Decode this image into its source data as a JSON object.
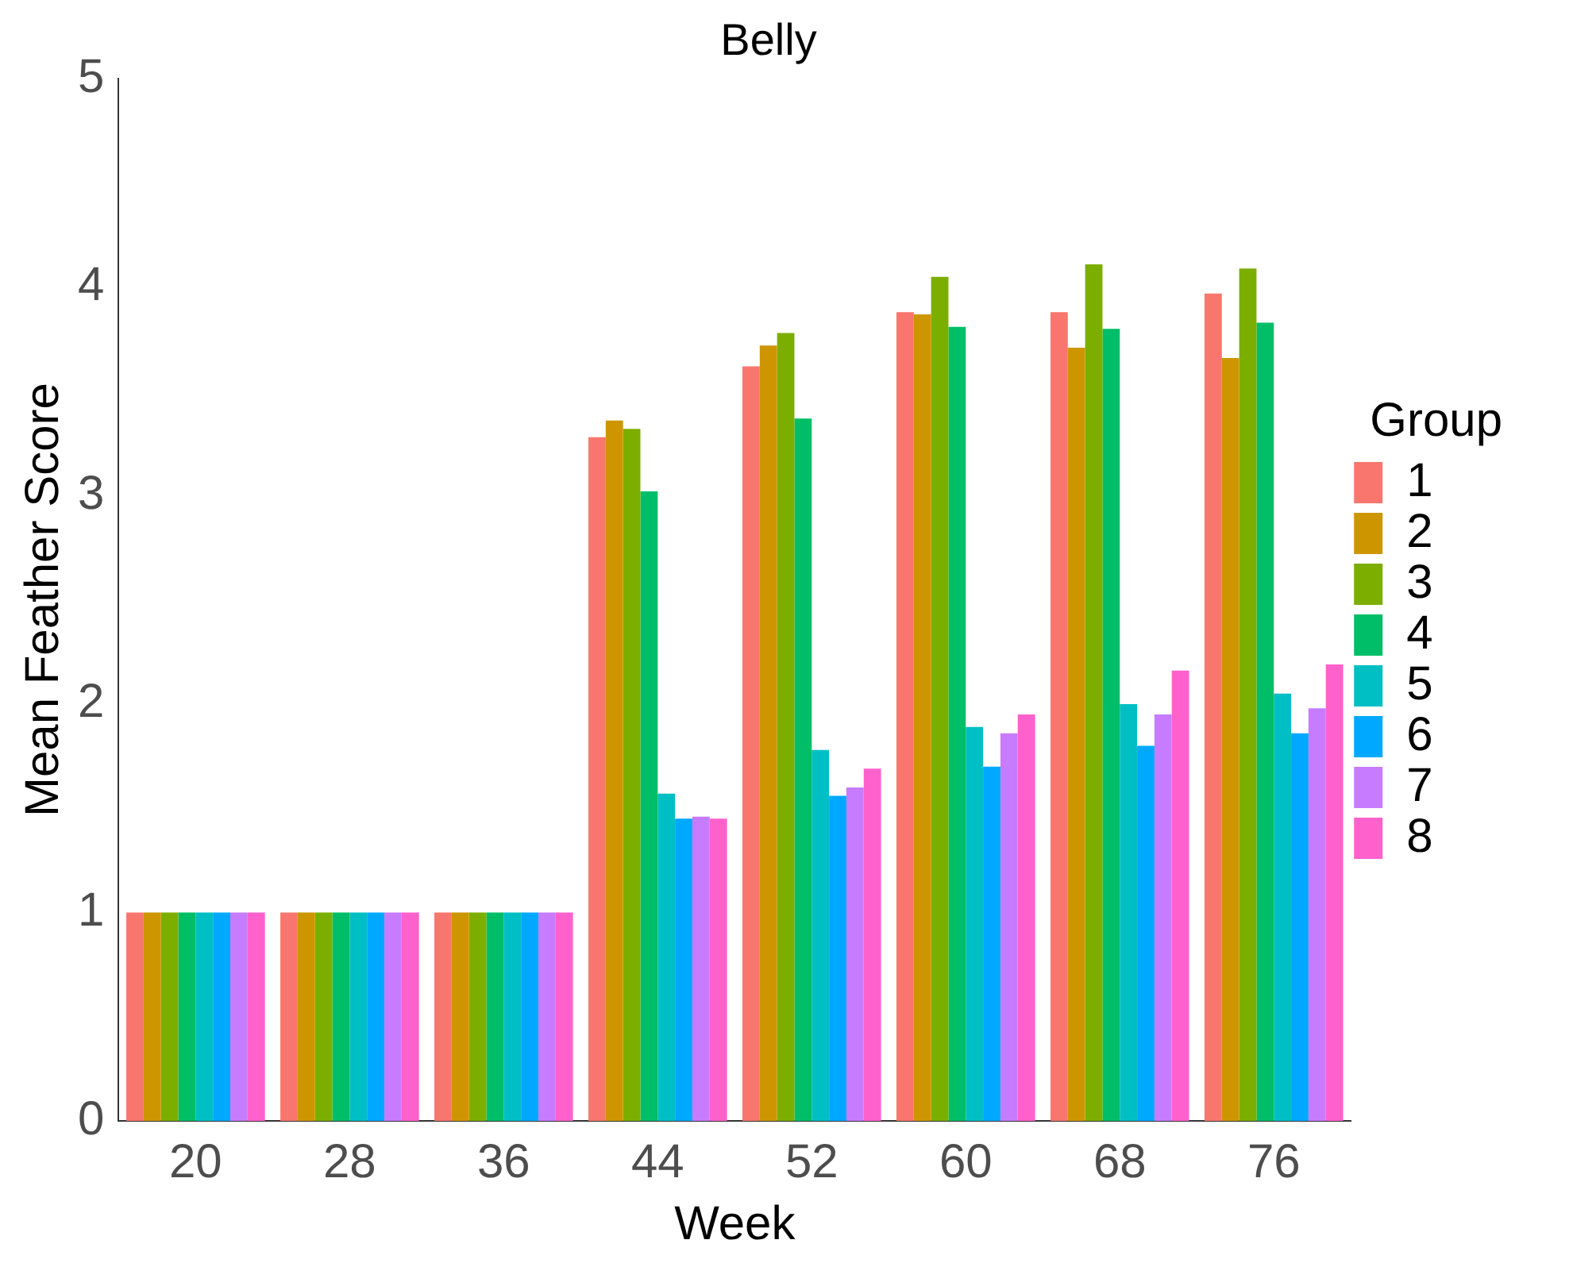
{
  "chart_data": {
    "type": "bar",
    "title": "Belly",
    "xlabel": "Week",
    "ylabel": "Mean Feather Score",
    "legend_title": "Group",
    "legend": "right",
    "grid": false,
    "categories": [
      "20",
      "28",
      "36",
      "44",
      "52",
      "60",
      "68",
      "76"
    ],
    "ylim": [
      0,
      5
    ],
    "yticks": [
      0,
      1,
      2,
      3,
      4,
      5
    ],
    "series": [
      {
        "name": "1",
        "color": "#f8766d",
        "values": [
          1,
          1,
          1,
          3.28,
          3.62,
          3.88,
          3.88,
          3.97
        ]
      },
      {
        "name": "2",
        "color": "#cd9600",
        "values": [
          1,
          1,
          1,
          3.36,
          3.72,
          3.87,
          3.71,
          3.66
        ]
      },
      {
        "name": "3",
        "color": "#7cae00",
        "values": [
          1,
          1,
          1,
          3.32,
          3.78,
          4.05,
          4.11,
          4.09
        ]
      },
      {
        "name": "4",
        "color": "#00be67",
        "values": [
          1,
          1,
          1,
          3.02,
          3.37,
          3.81,
          3.8,
          3.83
        ]
      },
      {
        "name": "5",
        "color": "#00bfc4",
        "values": [
          1,
          1,
          1,
          1.57,
          1.78,
          1.89,
          2.0,
          2.05
        ]
      },
      {
        "name": "6",
        "color": "#00a9ff",
        "values": [
          1,
          1,
          1,
          1.45,
          1.56,
          1.7,
          1.8,
          1.86
        ]
      },
      {
        "name": "7",
        "color": "#c77cff",
        "values": [
          1,
          1,
          1,
          1.46,
          1.6,
          1.86,
          1.95,
          1.98
        ]
      },
      {
        "name": "8",
        "color": "#ff61cc",
        "values": [
          1,
          1,
          1,
          1.45,
          1.69,
          1.95,
          2.16,
          2.19
        ]
      }
    ]
  }
}
